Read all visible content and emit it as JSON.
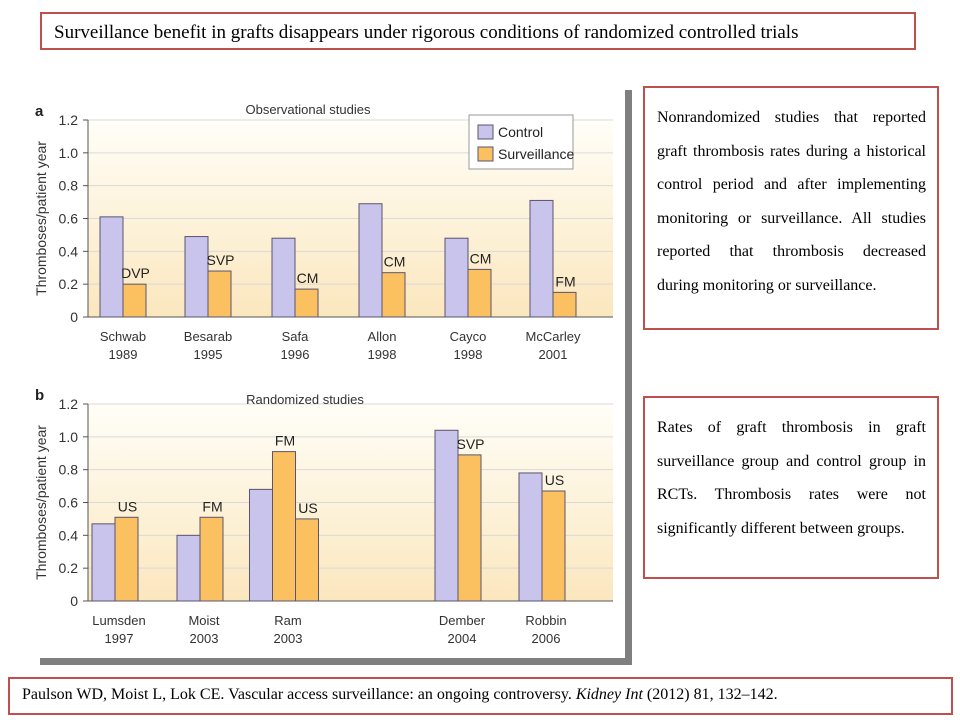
{
  "header": {
    "title": "Surveillance benefit in grafts disappears under rigorous  conditions of randomized controlled trials"
  },
  "colors": {
    "control": "#c8c4ec",
    "surveillance": "#fbc160",
    "bar_stroke": "#5a5470",
    "plot_bg_top": "#fffef8",
    "plot_bg_bottom": "#fbe7be",
    "box_border": "#c0504d"
  },
  "notes": {
    "observational": "Nonrandomized studies that reported graft thrombosis rates during a historical control period and after implementing monitoring or surveillance. All studies reported that thrombosis decreased during monitoring or surveillance.",
    "randomized": "Rates of graft thrombosis in graft surveillance group and control group in RCTs. Thrombosis rates were not significantly different between groups."
  },
  "citation": {
    "prefix": "Paulson WD, Moist L, Lok CE. Vascular access surveillance: an ongoing controversy. ",
    "journal": "Kidney Int",
    "suffix": " (2012) 81, 132–142."
  },
  "chart_data": [
    {
      "type": "bar",
      "panel": "a",
      "title": "Observational studies",
      "ylabel": "Thromboses/patient year",
      "ylim": [
        0,
        1.2
      ],
      "yticks": [
        "0",
        "0.2",
        "0.4",
        "0.6",
        "0.8",
        "1.0",
        "1.2"
      ],
      "grid": true,
      "legend": {
        "position": "top-right",
        "entries": [
          "Control",
          "Surveillance"
        ]
      },
      "categories": [
        {
          "name": "Schwab",
          "year": "1989",
          "method": "DVP"
        },
        {
          "name": "Besarab",
          "year": "1995",
          "method": "SVP"
        },
        {
          "name": "Safa",
          "year": "1996",
          "method": "CM"
        },
        {
          "name": "Allon",
          "year": "1998",
          "method": "CM"
        },
        {
          "name": "Cayco",
          "year": "1998",
          "method": "CM"
        },
        {
          "name": "McCarley",
          "year": "2001",
          "method": "FM"
        }
      ],
      "series": [
        {
          "name": "Control",
          "values": [
            0.61,
            0.49,
            0.48,
            0.69,
            0.48,
            0.71
          ]
        },
        {
          "name": "Surveillance",
          "values": [
            0.2,
            0.28,
            0.17,
            0.27,
            0.29,
            0.15
          ]
        }
      ]
    },
    {
      "type": "bar",
      "panel": "b",
      "title": "Randomized studies",
      "ylabel": "Thromboses/patient year",
      "ylim": [
        0,
        1.2
      ],
      "yticks": [
        "0",
        "0.2",
        "0.4",
        "0.6",
        "0.8",
        "1.0",
        "1.2"
      ],
      "grid": true,
      "groups": [
        {
          "name": "Lumsden",
          "year": "1997",
          "bars": [
            {
              "series": "Control",
              "value": 0.47
            },
            {
              "series": "Surveillance",
              "value": 0.51,
              "label": "US"
            }
          ]
        },
        {
          "name": "Moist",
          "year": "2003",
          "bars": [
            {
              "series": "Control",
              "value": 0.4
            },
            {
              "series": "Surveillance",
              "value": 0.51,
              "label": "FM"
            }
          ]
        },
        {
          "name": "Ram",
          "year": "2003",
          "bars": [
            {
              "series": "Control",
              "value": 0.68
            },
            {
              "series": "Surveillance",
              "value": 0.91,
              "label": "FM"
            },
            {
              "series": "Surveillance",
              "value": 0.5,
              "label": "US"
            }
          ]
        },
        {
          "name": "Dember",
          "year": "2004",
          "bars": [
            {
              "series": "Control",
              "value": 1.04
            },
            {
              "series": "Surveillance",
              "value": 0.89,
              "label": "SVP"
            }
          ]
        },
        {
          "name": "Robbin",
          "year": "2006",
          "bars": [
            {
              "series": "Control",
              "value": 0.78
            },
            {
              "series": "Surveillance",
              "value": 0.67,
              "label": "US"
            }
          ]
        }
      ]
    }
  ]
}
